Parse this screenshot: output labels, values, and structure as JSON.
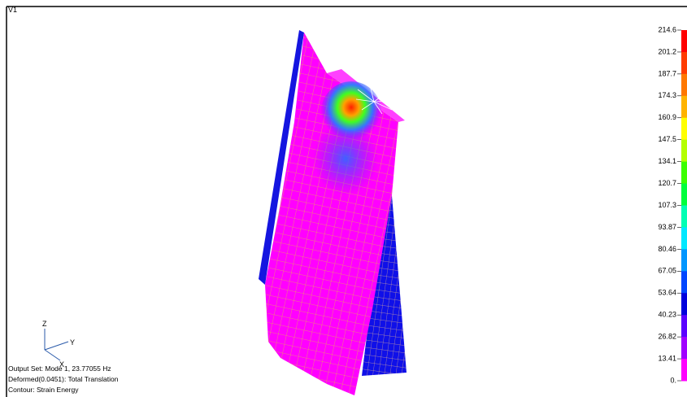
{
  "viewport": {
    "label": "V1"
  },
  "triad": {
    "z": "Z",
    "y": "Y",
    "x": "X"
  },
  "info": [
    "Output Set: Mode 1, 23.77055 Hz",
    "Deformed(0.0451): Total Translation",
    "Contour: Strain Energy"
  ],
  "legend": {
    "labels": [
      "214.6",
      "201.2",
      "187.7",
      "174.3",
      "160.9",
      "147.5",
      "134.1",
      "120.7",
      "107.3",
      "93.87",
      "80.46",
      "67.05",
      "53.64",
      "40.23",
      "26.82",
      "13.41",
      "0."
    ],
    "colors": [
      "#ff0000",
      "#ff3c00",
      "#ff7800",
      "#ffb400",
      "#ffff00",
      "#b4ff00",
      "#3cff00",
      "#00ff3c",
      "#00ffb4",
      "#00e8ff",
      "#0096ff",
      "#0046ff",
      "#0000dc",
      "#5a00ff",
      "#a000ff",
      "#ff00ff"
    ]
  }
}
